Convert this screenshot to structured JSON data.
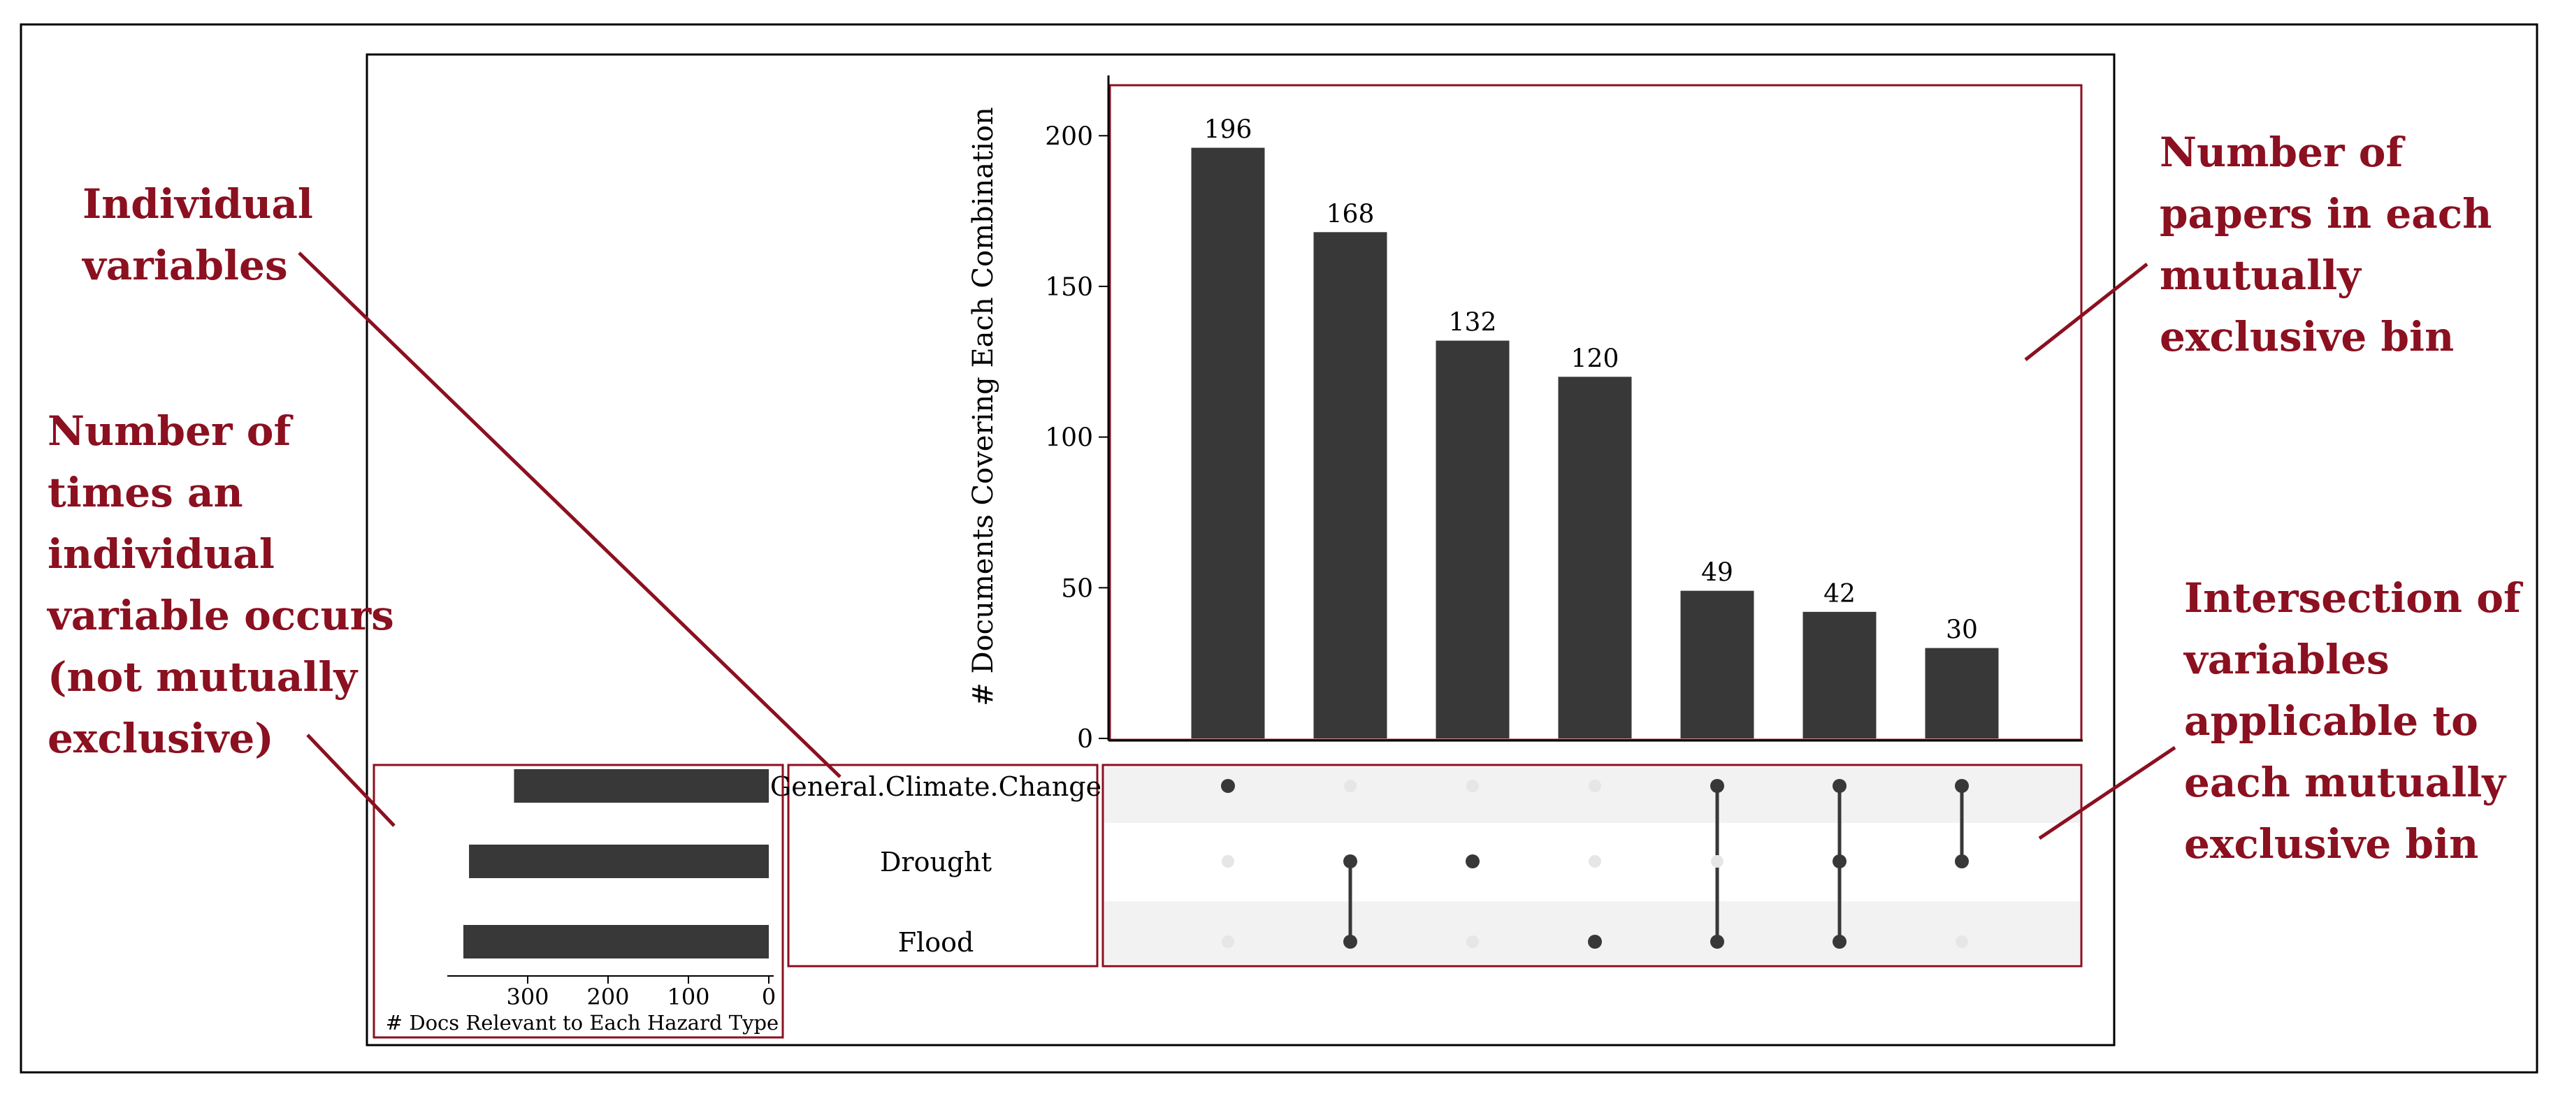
{
  "annotations": {
    "individual_variables": [
      "Individual",
      "variables"
    ],
    "set_size": [
      "Number of",
      "times an",
      "individual",
      "variable occurs",
      "(not mutually",
      "exclusive)"
    ],
    "bin_count": [
      "Number of",
      "papers in each",
      "mutually",
      "exclusive bin"
    ],
    "intersection": [
      "Intersection of",
      "variables",
      "applicable to",
      "each mutually",
      "exclusive bin"
    ]
  },
  "colors": {
    "annotation": "#8b1020",
    "bar": "#383838",
    "highlight_box": "#8b1020",
    "dot_inactive": "#e6e6e6",
    "stripe": "#f2f2f2"
  },
  "chart_data": {
    "type": "bar",
    "ylabel": "# Documents Covering Each Combination",
    "ylim": [
      0,
      220
    ],
    "yticks": [
      0,
      50,
      100,
      150,
      200
    ],
    "values": [
      196,
      168,
      132,
      120,
      49,
      42,
      30
    ],
    "data_labels": [
      "196",
      "168",
      "132",
      "120",
      "49",
      "42",
      "30"
    ],
    "sets": [
      "General.Climate.Change",
      "Drought",
      "Flood"
    ],
    "intersections": [
      [
        "General.Climate.Change"
      ],
      [
        "Drought",
        "Flood"
      ],
      [
        "Drought"
      ],
      [
        "Flood"
      ],
      [
        "General.Climate.Change",
        "Flood"
      ],
      [
        "General.Climate.Change",
        "Drought",
        "Flood"
      ],
      [
        "General.Climate.Change",
        "Drought"
      ]
    ],
    "set_size_chart": {
      "type": "bar",
      "orientation": "horizontal-reversed",
      "xlabel": "# Docs Relevant to Each Hazard Type",
      "xlim": [
        0,
        400
      ],
      "xticks": [
        300,
        200,
        100,
        0
      ],
      "values": [
        317,
        373,
        380
      ]
    }
  }
}
